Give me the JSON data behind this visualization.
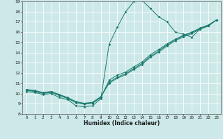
{
  "xlabel": "Humidex (Indice chaleur)",
  "xlim": [
    -0.5,
    23.5
  ],
  "ylim": [
    8,
    19
  ],
  "yticks": [
    8,
    9,
    10,
    11,
    12,
    13,
    14,
    15,
    16,
    17,
    18,
    19
  ],
  "xticks": [
    0,
    1,
    2,
    3,
    4,
    5,
    6,
    7,
    8,
    9,
    10,
    11,
    12,
    13,
    14,
    15,
    16,
    17,
    18,
    19,
    20,
    21,
    22,
    23
  ],
  "bg_color": "#cce8e8",
  "grid_color": "#ffffff",
  "line_color": "#1a7a6e",
  "line1_x": [
    0,
    1,
    2,
    3,
    4,
    5,
    6,
    7,
    8,
    9,
    10,
    11,
    12,
    13,
    14,
    15,
    16,
    17,
    18,
    19,
    20,
    21,
    22,
    23
  ],
  "line1_y": [
    10.2,
    10.1,
    9.9,
    10.0,
    9.6,
    9.4,
    8.8,
    8.7,
    8.8,
    9.5,
    14.8,
    16.5,
    18.0,
    19.0,
    19.1,
    18.3,
    17.5,
    17.0,
    16.0,
    15.8,
    15.5,
    16.3,
    16.6,
    17.2
  ],
  "line2_x": [
    0,
    1,
    2,
    3,
    4,
    5,
    6,
    7,
    8,
    9,
    10,
    11,
    12,
    13,
    14,
    15,
    16,
    17,
    18,
    19,
    20,
    21,
    22,
    23
  ],
  "line2_y": [
    10.3,
    10.2,
    10.0,
    10.1,
    9.8,
    9.5,
    9.1,
    8.95,
    9.05,
    9.6,
    11.3,
    11.8,
    12.1,
    12.6,
    13.1,
    13.8,
    14.3,
    14.85,
    15.3,
    15.7,
    16.0,
    16.4,
    16.7,
    17.2
  ],
  "line3_x": [
    0,
    1,
    2,
    3,
    4,
    5,
    6,
    7,
    8,
    9,
    10,
    11,
    12,
    13,
    14,
    15,
    16,
    17,
    18,
    19,
    20,
    21,
    22,
    23
  ],
  "line3_y": [
    10.35,
    10.25,
    10.05,
    10.15,
    9.85,
    9.55,
    9.15,
    9.0,
    9.1,
    9.65,
    11.1,
    11.6,
    11.95,
    12.45,
    12.95,
    13.65,
    14.15,
    14.75,
    15.25,
    15.65,
    15.95,
    16.35,
    16.65,
    17.2
  ],
  "line4_x": [
    0,
    1,
    2,
    3,
    4,
    5,
    6,
    7,
    8,
    9,
    10,
    11,
    12,
    13,
    14,
    15,
    16,
    17,
    18,
    19,
    20,
    21,
    22,
    23
  ],
  "line4_y": [
    10.4,
    10.3,
    10.1,
    10.2,
    9.9,
    9.6,
    9.2,
    9.05,
    9.15,
    9.7,
    11.0,
    11.5,
    11.85,
    12.35,
    12.85,
    13.55,
    14.05,
    14.65,
    15.15,
    15.55,
    15.85,
    16.3,
    16.6,
    17.2
  ]
}
